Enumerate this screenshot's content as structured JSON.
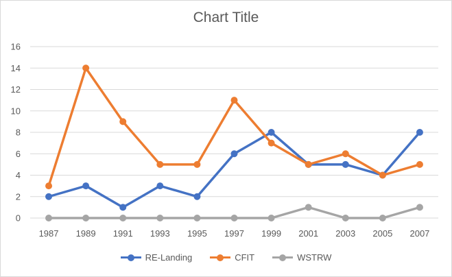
{
  "chart_data": {
    "type": "line",
    "title": "Chart Title",
    "xlabel": "",
    "ylabel": "",
    "categories": [
      "1987",
      "1989",
      "1991",
      "1993",
      "1995",
      "1997",
      "1999",
      "2001",
      "2003",
      "2005",
      "2007"
    ],
    "ylim": [
      0,
      16
    ],
    "yticks": [
      "0",
      "2",
      "4",
      "6",
      "8",
      "10",
      "12",
      "14",
      "16"
    ],
    "grid": true,
    "legend_position": "bottom",
    "series": [
      {
        "name": "RE-Landing",
        "color": "#4472c4",
        "values": [
          2,
          3,
          1,
          3,
          2,
          6,
          8,
          5,
          5,
          4,
          8
        ]
      },
      {
        "name": "CFIT",
        "color": "#ed7d31",
        "values": [
          3,
          14,
          9,
          5,
          5,
          11,
          7,
          5,
          6,
          4,
          5
        ]
      },
      {
        "name": "WSTRW",
        "color": "#a5a5a5",
        "values": [
          0,
          0,
          0,
          0,
          0,
          0,
          0,
          1,
          0,
          0,
          1
        ]
      }
    ]
  }
}
